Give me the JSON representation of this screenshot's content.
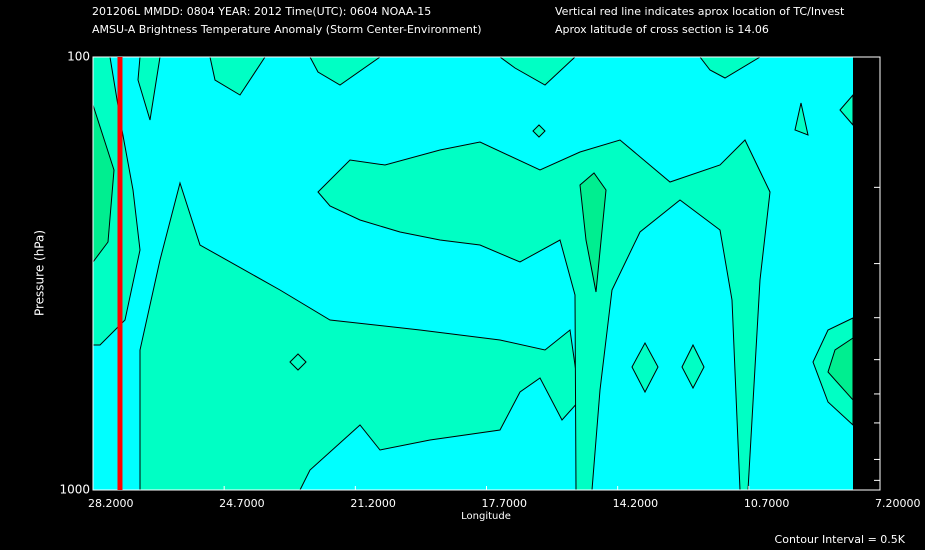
{
  "chart_data": {
    "type": "contour",
    "title": "201206L  MMDD: 0804 YEAR: 2012 Time(UTC): 0604 NOAA-15",
    "subtitle": "AMSU-A Brightness Temperature Anomaly (Storm Center-Environment)",
    "annotations": [
      "Vertical red line indicates aprox location of TC/Invest",
      "Aprox latitude of cross section is 14.06"
    ],
    "footnote": "Contour Interval = 0.5K",
    "xlabel": "Longitude",
    "ylabel": "Pressure (hPa)",
    "xlim": [
      28.2,
      7.2
    ],
    "xticks": [
      {
        "value": 28.2,
        "label": "28.2000"
      },
      {
        "value": 24.7,
        "label": "24.7000"
      },
      {
        "value": 21.2,
        "label": "21.2000"
      },
      {
        "value": 17.7,
        "label": "17.7000"
      },
      {
        "value": 14.2,
        "label": "14.2000"
      },
      {
        "value": 10.7,
        "label": "10.7000"
      },
      {
        "value": 7.2,
        "label": "7.20000"
      }
    ],
    "ylim": [
      1000,
      100
    ],
    "ylog": true,
    "yticks": [
      1000,
      100
    ],
    "yminor_ticks": [
      950,
      850,
      700,
      600,
      500,
      400,
      300,
      200
    ],
    "tc_longitude": 27.48,
    "tc_line_color": "#ff0000"
  }
}
